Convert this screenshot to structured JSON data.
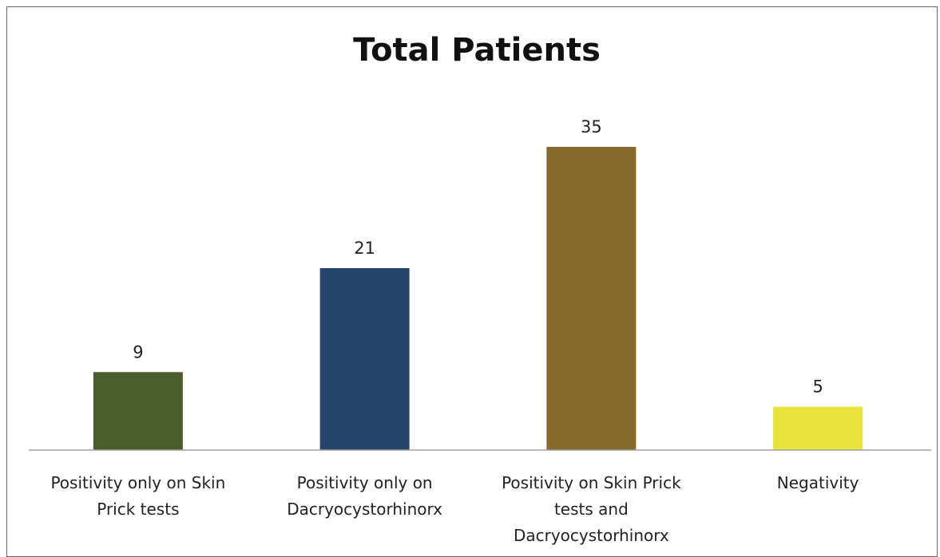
{
  "chart_data": {
    "type": "bar",
    "title": "Total Patients",
    "categories": [
      [
        "Positivity only on Skin",
        "Prick tests"
      ],
      [
        "Positivity only on",
        "Dacryocystorhinorx"
      ],
      [
        "Positivity on Skin Prick",
        "tests and",
        "Dacryocystorhinorx"
      ],
      [
        "Negativity"
      ]
    ],
    "values": [
      9,
      21,
      35,
      5
    ],
    "colors": [
      "#4a5e2c",
      "#26446c",
      "#856a2c",
      "#e8e43c"
    ],
    "xlabel": "",
    "ylabel": "",
    "ylim": [
      0,
      35
    ],
    "grid": false,
    "legend": "none",
    "data_labels": true
  }
}
